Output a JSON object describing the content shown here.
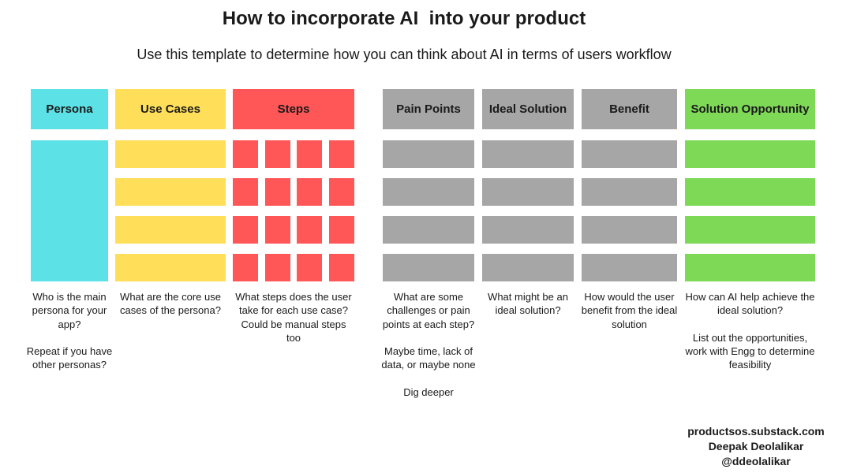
{
  "title": "How to incorporate AI  into your product",
  "subtitle": "Use this template to determine how you can think about AI in terms of users workflow",
  "colors": {
    "persona": "#5ce1e6",
    "use_cases": "#ffde59",
    "steps": "#ff5757",
    "gray": "#a6a6a6",
    "solution": "#7ed957"
  },
  "columns": [
    {
      "key": "persona",
      "header": "Persona",
      "description": "Who is the main persona for your app?\n\nRepeat if you have other personas?"
    },
    {
      "key": "use-cases",
      "header": "Use Cases",
      "description": "What are the core use cases of the persona?"
    },
    {
      "key": "steps",
      "header": "Steps",
      "description": "What steps does the user take for each use case?\nCould be manual steps too"
    },
    {
      "key": "pain-points",
      "header": "Pain Points",
      "description": "What are some challenges or pain points at each step?\n\nMaybe time, lack of data, or maybe none\n\nDig deeper"
    },
    {
      "key": "ideal-solution",
      "header": "Ideal Solution",
      "description": "What might be an ideal solution?"
    },
    {
      "key": "benefit",
      "header": "Benefit",
      "description": "How would the user benefit from the ideal solution"
    },
    {
      "key": "solution-opportunity",
      "header": "Solution Opportunity",
      "description": "How can AI help achieve the ideal solution?\n\nList out the opportunities, work with Engg to determine feasibility"
    }
  ],
  "credits": {
    "site": "productsos.substack.com",
    "author": "Deepak Deolalikar",
    "handle": "@ddeolalikar"
  }
}
